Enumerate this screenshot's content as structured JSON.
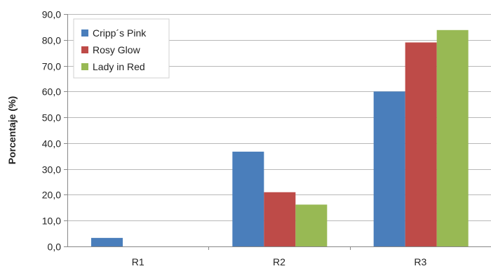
{
  "chart_data": {
    "type": "bar",
    "title": "",
    "xlabel": "",
    "ylabel": "Porcentaje (%)",
    "categories": [
      "R1",
      "R2",
      "R3"
    ],
    "ylim": [
      0,
      90
    ],
    "y_ticks": [
      "0,0",
      "10,0",
      "20,0",
      "30,0",
      "40,0",
      "50,0",
      "60,0",
      "70,0",
      "80,0",
      "90,0"
    ],
    "grid": true,
    "legend_position": "top-left",
    "series": [
      {
        "name": "Cripp´s Pink",
        "values": [
          3.3,
          36.7,
          60.0
        ],
        "color": "#4a7ebb"
      },
      {
        "name": "Rosy Glow",
        "values": [
          0,
          21.0,
          79.0
        ],
        "color": "#be4b48"
      },
      {
        "name": "Lady in Red",
        "values": [
          0,
          16.2,
          83.8
        ],
        "color": "#98b954"
      }
    ]
  }
}
